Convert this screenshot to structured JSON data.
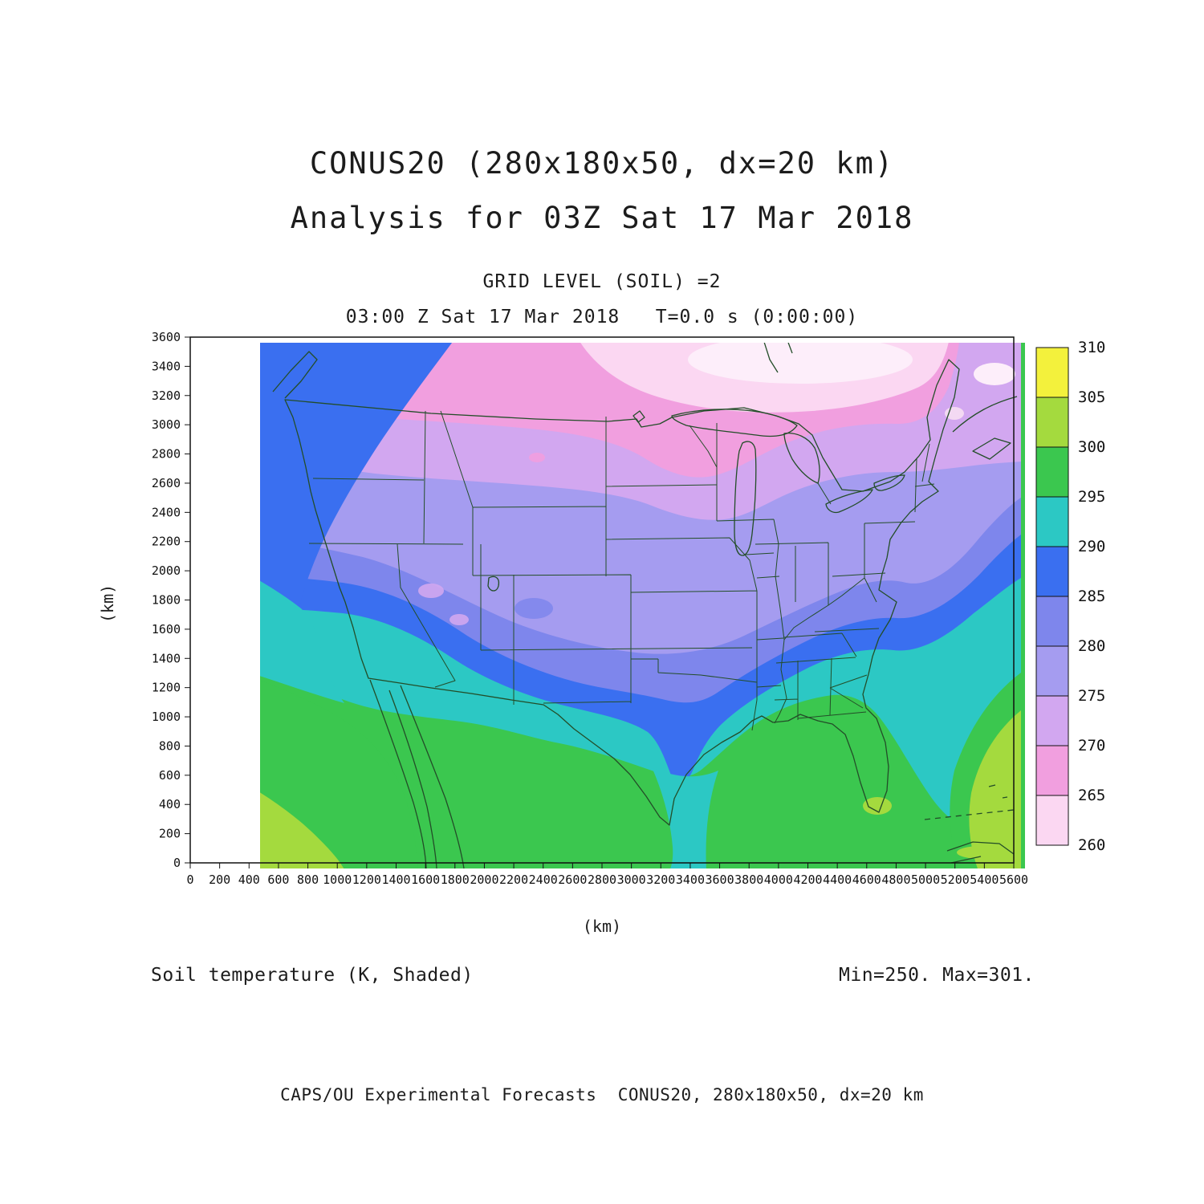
{
  "figure": {
    "title_line1": "CONUS20 (280x180x50, dx=20 km)",
    "title_line2": "Analysis for 03Z Sat 17 Mar 2018",
    "grid_level": "GRID LEVEL (SOIL) =2",
    "time_line": "03:00 Z Sat 17 Mar 2018   T=0.0 s (0:00:00)",
    "field_label": "Soil temperature (K, Shaded)",
    "minmax_label": "Min=250. Max=301.",
    "footer": "CAPS/OU Experimental Forecasts  CONUS20, 280x180x50, dx=20 km",
    "xaxis_label": "(km)",
    "yaxis_label": "(km)"
  },
  "chart_data": {
    "type": "heatmap",
    "title": "CONUS20 (280x180x50, dx=20 km) — Analysis for 03Z Sat 17 Mar 2018",
    "subtitle": "GRID LEVEL (SOIL) =2 | 03:00 Z Sat 17 Mar 2018  T=0.0 s (0:00:00)",
    "field": "Soil temperature",
    "units": "K",
    "min": 250,
    "max": 301,
    "xlabel": "(km)",
    "ylabel": "(km)",
    "xlim": [
      0,
      5600
    ],
    "ylim": [
      0,
      3600
    ],
    "xticks": [
      0,
      200,
      400,
      600,
      800,
      1000,
      1200,
      1400,
      1600,
      1800,
      2000,
      2200,
      2400,
      2600,
      2800,
      3000,
      3200,
      3400,
      3600,
      3800,
      4000,
      4200,
      4400,
      4600,
      4800,
      5000,
      5200,
      5400,
      5600
    ],
    "yticks": [
      0,
      200,
      400,
      600,
      800,
      1000,
      1200,
      1400,
      1600,
      1800,
      2000,
      2200,
      2400,
      2600,
      2800,
      3000,
      3200,
      3400,
      3600
    ],
    "grid": false,
    "legend_position": "right",
    "colorbar": {
      "levels": [
        260,
        265,
        270,
        275,
        280,
        285,
        290,
        295,
        300,
        305,
        310
      ],
      "labels_top_to_bottom": [
        "310.",
        "305.",
        "300.",
        "295.",
        "290.",
        "285.",
        "280.",
        "275.",
        "270.",
        "265.",
        "260."
      ],
      "colors_bottom_to_top": [
        "#fbd7f2",
        "#f19fdf",
        "#d2a7f0",
        "#a59cf0",
        "#7e86ec",
        "#3a6ff0",
        "#2cc8c4",
        "#3bc74f",
        "#a4da3e",
        "#f3f13c"
      ]
    },
    "region": "Continental US with southern Canada, northern Mexico, Gulf of Mexico and adjacent oceans; state borders overlaid",
    "pattern_summary": [
      "Coldest soil (260-268 K, pale pink/white) across southern Canada and the far northern plains",
      "268-275 K (pink/lavender) over Montana, the Dakotas, Minnesota, Wisconsin, upper Michigan",
      "275-280 K (light purple) over the interior West, central plains, Midwest and New England",
      "280-290 K (periwinkle/blue) band from California across the southern plains, Ohio Valley and mid-Atlantic; blue Pacific off the Northwest coast",
      "290-295 K (teal) across southern Texas, the Gulf Coast states and coastal Atlantic waters",
      "295-305 K (green/light green) over Florida, Mexico, the Gulf of Mexico, Caribbean and subtropical oceans"
    ]
  }
}
